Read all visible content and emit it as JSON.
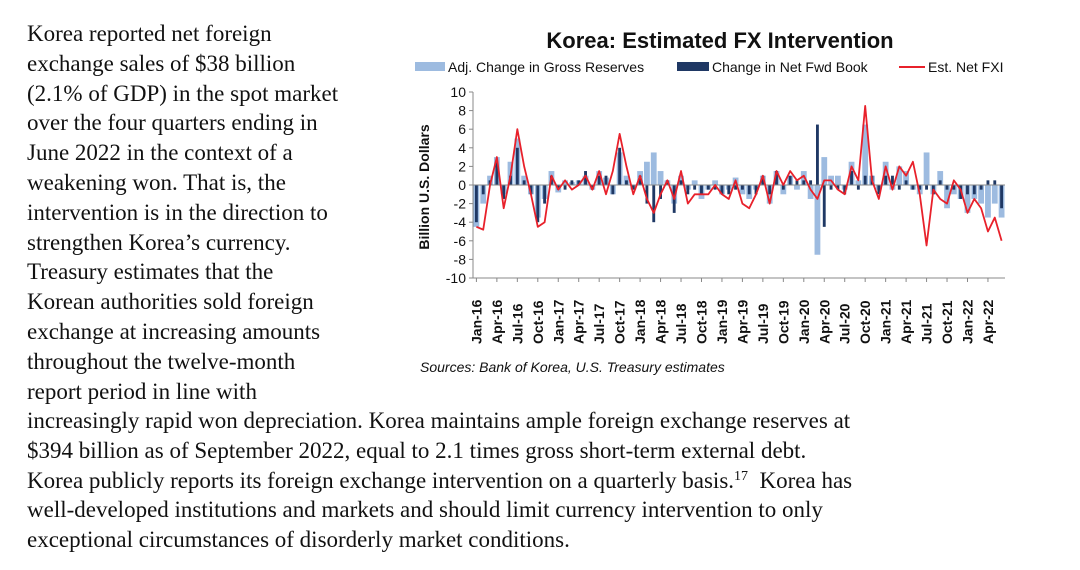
{
  "document": {
    "left_lines": [
      "Korea reported net foreign",
      "exchange sales of $38 billion",
      "(2.1% of GDP) in the spot market",
      "over the four quarters ending in",
      "June 2022 in the context of a",
      "weakening won.  That is, the",
      "intervention is in the direction to",
      "strengthen Korea’s currency.",
      "Treasury estimates that the",
      "Korean authorities sold foreign",
      "exchange at increasing amounts",
      "throughout the twelve-month",
      "report period in line with"
    ],
    "full_lines": [
      "increasingly rapid won depreciation.  Korea maintains ample foreign exchange reserves at",
      "$394 billion as of September 2022, equal to 2.1 times gross short-term external debt.",
      "Korea publicly reports its foreign exchange intervention on a quarterly basis.",
      "well-developed institutions and markets and should limit currency intervention to only",
      "exceptional circumstances of disorderly market conditions."
    ],
    "footnote_marker": "17",
    "line3_tail": "  Korea has"
  },
  "chart_data": {
    "type": "bar",
    "title": "Korea: Estimated FX Intervention",
    "ylabel": "Billion U.S. Dollars",
    "ylim": [
      -10,
      10
    ],
    "yticks": [
      10,
      8,
      6,
      4,
      2,
      0,
      -2,
      -4,
      -6,
      -8,
      -10
    ],
    "source": "Sources: Bank of Korea, U.S. Treasury estimates",
    "legend_position": "top",
    "x_tick_labels": [
      "Jan-16",
      "Apr-16",
      "Jul-16",
      "Oct-16",
      "Jan-17",
      "Apr-17",
      "Jul-17",
      "Oct-17",
      "Jan-18",
      "Apr-18",
      "Jul-18",
      "Oct-18",
      "Jan-19",
      "Apr-19",
      "Jul-19",
      "Oct-19",
      "Jan-20",
      "Apr-20",
      "Jul-20",
      "Oct-20",
      "Jan-21",
      "Apr-21",
      "Jul-21",
      "Oct-21",
      "Jan-22",
      "Apr-22"
    ],
    "x": [
      "Jan-16",
      "Feb-16",
      "Mar-16",
      "Apr-16",
      "May-16",
      "Jun-16",
      "Jul-16",
      "Aug-16",
      "Sep-16",
      "Oct-16",
      "Nov-16",
      "Dec-16",
      "Jan-17",
      "Feb-17",
      "Mar-17",
      "Apr-17",
      "May-17",
      "Jun-17",
      "Jul-17",
      "Aug-17",
      "Sep-17",
      "Oct-17",
      "Nov-17",
      "Dec-17",
      "Jan-18",
      "Feb-18",
      "Mar-18",
      "Apr-18",
      "May-18",
      "Jun-18",
      "Jul-18",
      "Aug-18",
      "Sep-18",
      "Oct-18",
      "Nov-18",
      "Dec-18",
      "Jan-19",
      "Feb-19",
      "Mar-19",
      "Apr-19",
      "May-19",
      "Jun-19",
      "Jul-19",
      "Aug-19",
      "Sep-19",
      "Oct-19",
      "Nov-19",
      "Dec-19",
      "Jan-20",
      "Feb-20",
      "Mar-20",
      "Apr-20",
      "May-20",
      "Jun-20",
      "Jul-20",
      "Aug-20",
      "Sep-20",
      "Oct-20",
      "Nov-20",
      "Dec-20",
      "Jan-21",
      "Feb-21",
      "Mar-21",
      "Apr-21",
      "May-21",
      "Jun-21",
      "Jul-21",
      "Aug-21",
      "Sep-21",
      "Oct-21",
      "Nov-21",
      "Dec-21",
      "Jan-22",
      "Feb-22",
      "Mar-22",
      "Apr-22",
      "May-22",
      "Jun-22"
    ],
    "series": [
      {
        "name": "Adj. Change in Gross Reserves",
        "kind": "bar",
        "color": "#9dbbe0",
        "values": [
          -4.5,
          -2.0,
          1.0,
          3.0,
          -1.0,
          2.5,
          5.0,
          1.0,
          -1.0,
          -3.5,
          -1.5,
          1.5,
          -0.8,
          0.5,
          0.3,
          0.5,
          1.0,
          -0.5,
          1.5,
          0.8,
          -1.0,
          3.5,
          1.0,
          -0.5,
          1.5,
          2.5,
          3.5,
          1.5,
          0.5,
          -2.0,
          1.0,
          -0.5,
          0.5,
          -1.5,
          -0.5,
          0.5,
          -1.0,
          -0.5,
          0.8,
          -1.0,
          -1.5,
          -0.5,
          1.0,
          -2.0,
          1.5,
          -1.0,
          1.0,
          -0.5,
          1.5,
          -1.5,
          -7.5,
          3.0,
          1.0,
          1.0,
          -0.5,
          2.5,
          0.5,
          6.5,
          1.0,
          -0.5,
          2.5,
          -0.5,
          2.0,
          1.5,
          -0.5,
          -1.0,
          3.5,
          -1.0,
          1.5,
          -2.5,
          -1.0,
          -1.5,
          -3.0,
          -1.5,
          -2.0,
          -3.5,
          -2.0,
          -3.5
        ]
      },
      {
        "name": "Change in Net Fwd Book",
        "kind": "bar",
        "color": "#1f3864",
        "values": [
          -4.0,
          -1.0,
          0.5,
          2.5,
          -1.5,
          1.0,
          4.0,
          0.5,
          -1.0,
          -4.0,
          -2.0,
          1.0,
          -0.5,
          -0.5,
          0.5,
          0.5,
          1.5,
          -0.5,
          1.0,
          1.0,
          -1.0,
          4.0,
          0.5,
          -0.5,
          1.0,
          -2.0,
          -4.0,
          -1.5,
          0.5,
          -3.0,
          0.5,
          -1.0,
          -0.5,
          -1.0,
          -0.5,
          -0.5,
          -1.0,
          -1.0,
          -0.5,
          -0.5,
          -1.0,
          -1.0,
          1.0,
          -1.0,
          1.5,
          -0.5,
          1.0,
          0.5,
          0.5,
          0.5,
          6.5,
          -4.5,
          -0.5,
          -0.5,
          -1.0,
          1.5,
          -0.5,
          1.0,
          1.0,
          -1.0,
          1.0,
          1.0,
          -0.5,
          0.5,
          -0.5,
          -0.5,
          -0.5,
          -1.0,
          0.5,
          -0.5,
          -0.5,
          -1.5,
          -1.0,
          -1.0,
          -0.5,
          0.5,
          0.5,
          -2.5
        ]
      },
      {
        "name": "Est. Net FXI",
        "kind": "line",
        "color": "#e8212b",
        "values": [
          -4.5,
          -4.8,
          0.0,
          3.0,
          -2.5,
          1.0,
          6.0,
          2.0,
          -1.0,
          -4.5,
          -4.0,
          1.0,
          -0.5,
          0.5,
          -0.5,
          0.0,
          1.0,
          -0.5,
          1.5,
          -1.0,
          1.5,
          5.5,
          2.0,
          -1.0,
          1.0,
          -1.5,
          -3.0,
          -1.0,
          0.5,
          -1.5,
          1.5,
          -2.0,
          -1.0,
          -1.0,
          -1.0,
          0.0,
          -1.0,
          -1.5,
          0.5,
          -2.0,
          -2.5,
          -1.0,
          1.0,
          -2.0,
          1.5,
          0.0,
          1.5,
          0.5,
          1.0,
          -0.5,
          -1.5,
          0.5,
          0.5,
          -0.5,
          -1.0,
          2.0,
          0.5,
          8.5,
          0.5,
          -1.5,
          2.0,
          -0.5,
          2.0,
          1.0,
          2.5,
          -1.0,
          -6.5,
          -0.5,
          -1.5,
          -2.0,
          0.5,
          -0.5,
          -3.0,
          -1.5,
          -2.5,
          -5.0,
          -3.5,
          -6.0
        ]
      }
    ]
  }
}
